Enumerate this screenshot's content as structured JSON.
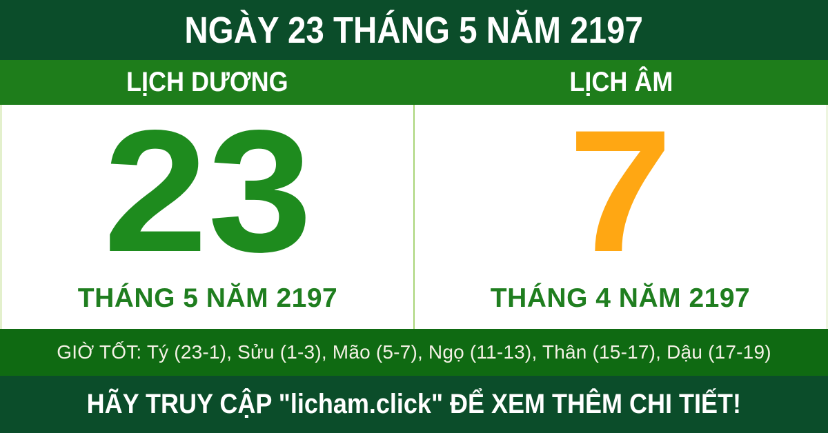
{
  "header": {
    "title": "NGÀY 23 THÁNG 5 NĂM 2197"
  },
  "solar": {
    "header": "LỊCH DƯƠNG",
    "day": "23",
    "month_year": "THÁNG 5 NĂM 2197"
  },
  "lunar": {
    "header": "LỊCH ÂM",
    "day": "7",
    "month_year": "THÁNG 4 NĂM 2197"
  },
  "good_hours": {
    "label": "GIỜ TỐT",
    "text": "GIỜ TỐT: Tý (23-1), Sửu (1-3), Mão (5-7), Ngọ (11-13), Thân (15-17), Dậu (17-19)",
    "hours": [
      {
        "name": "Tý",
        "range": "23-1"
      },
      {
        "name": "Sửu",
        "range": "1-3"
      },
      {
        "name": "Mão",
        "range": "5-7"
      },
      {
        "name": "Ngọ",
        "range": "11-13"
      },
      {
        "name": "Thân",
        "range": "15-17"
      },
      {
        "name": "Dậu",
        "range": "17-19"
      }
    ]
  },
  "footer": {
    "text": "HÃY TRUY CẬP \"licham.click\" ĐỂ XEM THÊM CHI TIẾT!"
  },
  "colors": {
    "dark_green": "#0B4D2A",
    "band_green": "#1E7D1B",
    "hours_green": "#0F6A12",
    "solar_day_green": "#1E8B1E",
    "month_green": "#1F7E1F",
    "lunar_day_orange": "#FFA713",
    "divider_light_green": "#A8D477",
    "text_white": "#FFFFFF"
  }
}
